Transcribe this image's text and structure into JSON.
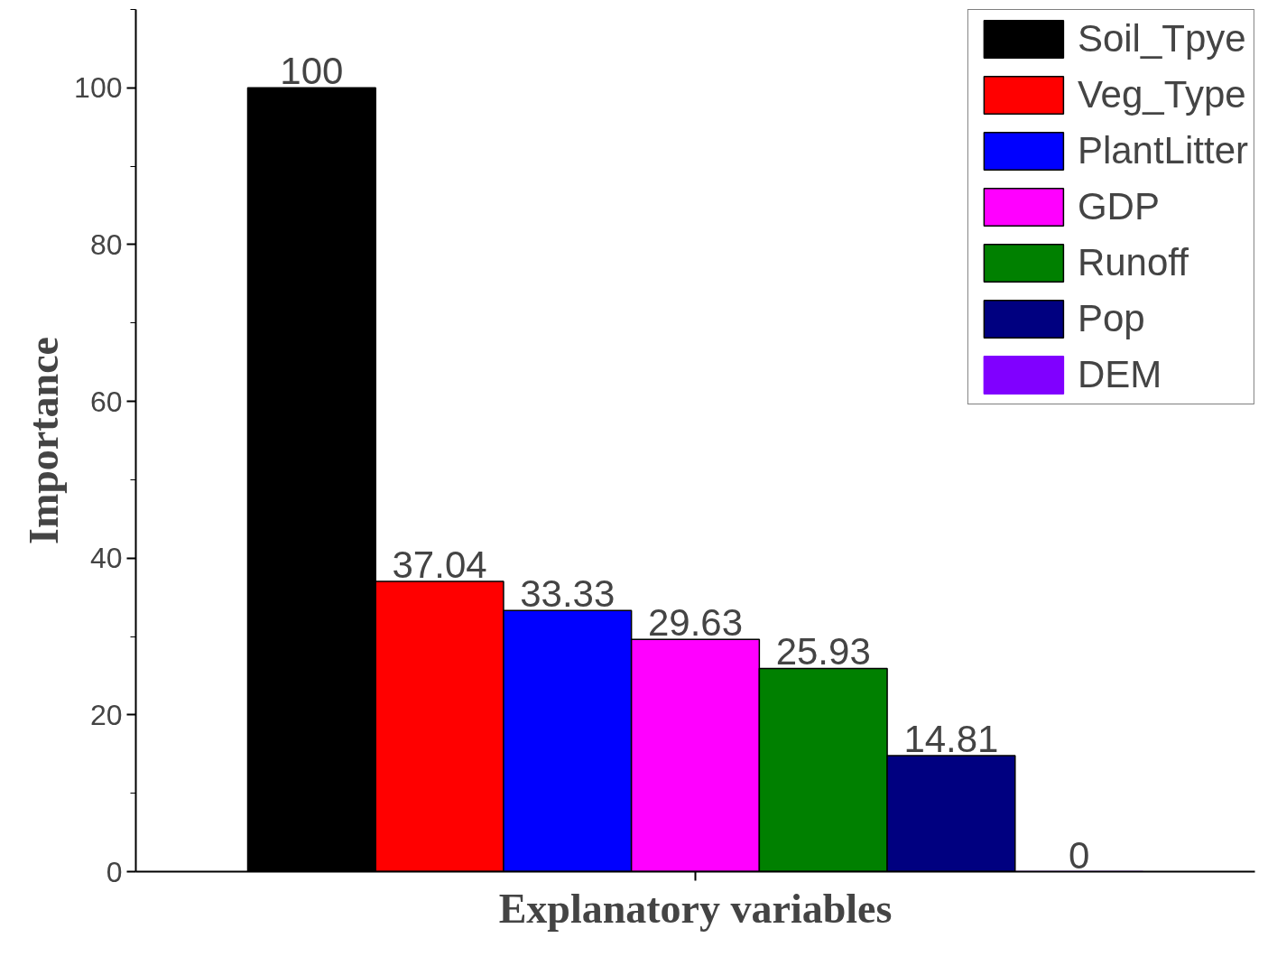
{
  "chart_data": {
    "type": "bar",
    "xlabel": "Explanatory variables",
    "ylabel": "Importance",
    "categories": [
      null
    ],
    "series": [
      {
        "name": "Soil_Tpye",
        "color": "#000000",
        "values": [
          100
        ]
      },
      {
        "name": "Veg_Type",
        "color": "#ff0000",
        "values": [
          37.04
        ]
      },
      {
        "name": "PlantLitter",
        "color": "#0000ff",
        "values": [
          33.33
        ]
      },
      {
        "name": "GDP",
        "color": "#ff00ff",
        "values": [
          29.63
        ]
      },
      {
        "name": "Runoff",
        "color": "#008000",
        "values": [
          25.93
        ]
      },
      {
        "name": "Pop",
        "color": "#000080",
        "values": [
          14.81
        ]
      },
      {
        "name": "DEM",
        "color": "#8000ff",
        "values": [
          0
        ]
      }
    ],
    "ylim": [
      0,
      110
    ],
    "yticks": [
      0,
      20,
      40,
      60,
      80,
      100
    ],
    "data_labels": true,
    "legend": "top right",
    "grid": false
  }
}
